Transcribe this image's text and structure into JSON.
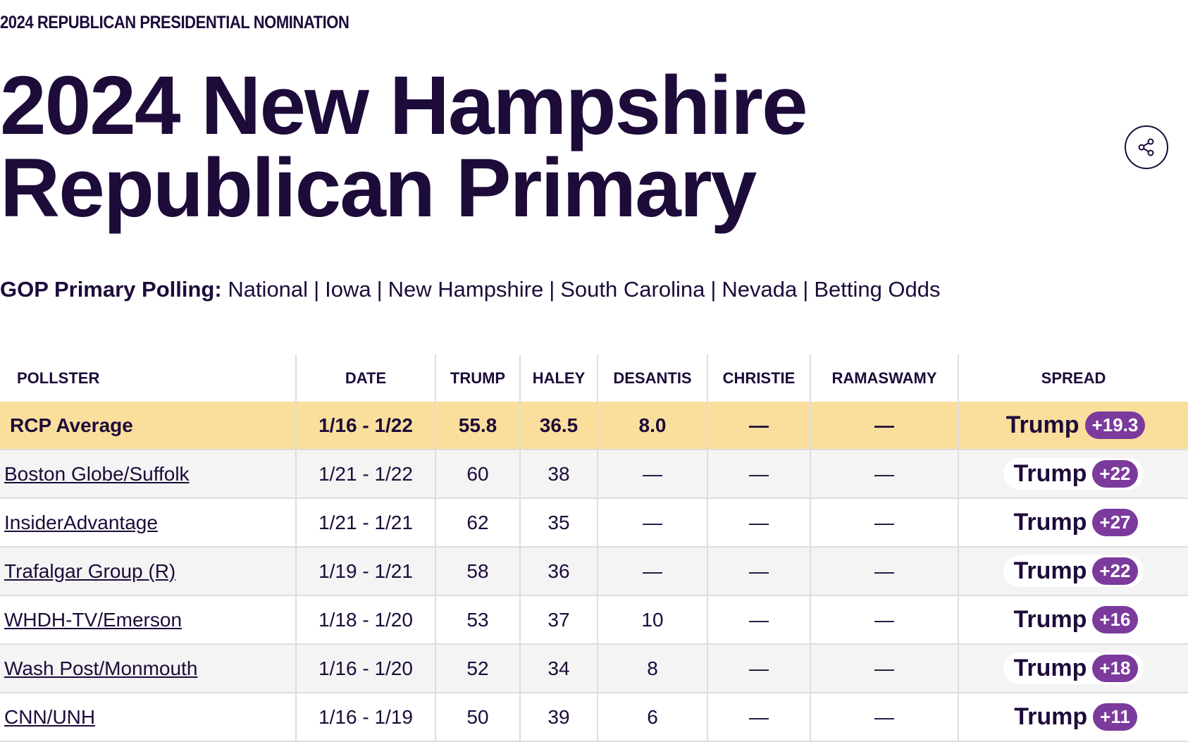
{
  "header": {
    "kicker": "2024 REPUBLICAN PRESIDENTIAL NOMINATION",
    "title_lines": [
      "2024 New Hampshire",
      "Republican Primary"
    ]
  },
  "nav": {
    "label": "GOP Primary Polling:",
    "links": [
      "National",
      "Iowa",
      "New Hampshire",
      "South Carolina",
      "Nevada",
      "Betting Odds"
    ],
    "separator": "|"
  },
  "table": {
    "headers": [
      "POLLSTER",
      "DATE",
      "TRUMP",
      "HALEY",
      "DESANTIS",
      "CHRISTIE",
      "RAMASWAMY",
      "SPREAD"
    ],
    "rows": [
      [
        "RCP Average",
        "1/16 - 1/22",
        "55.8",
        "36.5",
        "8.0",
        "—",
        "—",
        "Trump",
        "+19.3"
      ],
      [
        "Boston Globe/Suffolk",
        "1/21 - 1/22",
        "60",
        "38",
        "—",
        "—",
        "—",
        "Trump",
        "+22"
      ],
      [
        "InsiderAdvantage",
        "1/21 - 1/21",
        "62",
        "35",
        "—",
        "—",
        "—",
        "Trump",
        "+27"
      ],
      [
        "Trafalgar Group (R)",
        "1/19 - 1/21",
        "58",
        "36",
        "—",
        "—",
        "—",
        "Trump",
        "+22"
      ],
      [
        "WHDH-TV/Emerson",
        "1/18 - 1/20",
        "53",
        "37",
        "10",
        "—",
        "—",
        "Trump",
        "+16"
      ],
      [
        "Wash Post/Monmouth",
        "1/16 - 1/20",
        "52",
        "34",
        "8",
        "—",
        "—",
        "Trump",
        "+18"
      ],
      [
        "CNN/UNH",
        "1/16 - 1/19",
        "50",
        "39",
        "6",
        "—",
        "—",
        "Trump",
        "+11"
      ]
    ]
  }
}
